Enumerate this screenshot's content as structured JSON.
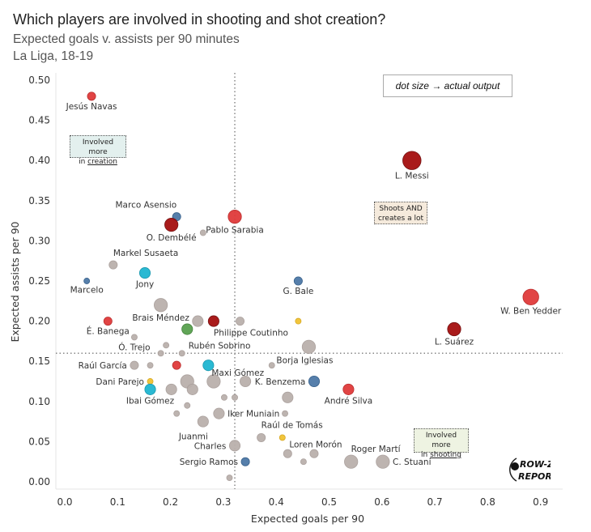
{
  "header": {
    "title": "Which players are involved in shooting and shot creation?",
    "subtitle": "Expected goals v. assists per 90 minutes",
    "league": "La Liga, 18-19"
  },
  "annotations": {
    "size_legend": "dot size → actual output",
    "creation_note": {
      "line1": "Involved more",
      "line2_prefix": "in ",
      "line2_emph": "creation"
    },
    "both_note": {
      "line1": "Shoots AND",
      "line2": "creates a lot"
    },
    "shooting_note": {
      "line1": "Involved more",
      "line2_prefix": "in ",
      "line2_emph": "shooting"
    },
    "logo": {
      "line1": "ROW-Z",
      "line2": "REPORT"
    }
  },
  "colors": {
    "red": "#e03a3a",
    "darkred": "#a50f0f",
    "blue": "#4e79a7",
    "cyan": "#1fb6d1",
    "green": "#59a14f",
    "yellow": "#f1c232",
    "gray": "#bab0ac"
  },
  "chart_data": {
    "type": "scatter",
    "title": "Which players are involved in shooting and shot creation?",
    "xlabel": "Expected goals per 90",
    "ylabel": "Expected assists per 90",
    "xlim": [
      -0.02,
      0.95
    ],
    "ylim": [
      0.0,
      0.5
    ],
    "xticks": [
      "0.0",
      "0.1",
      "0.2",
      "0.3",
      "0.4",
      "0.5",
      "0.6",
      "0.7",
      "0.8",
      "0.9"
    ],
    "xtick_values": [
      0.0,
      0.1,
      0.2,
      0.3,
      0.4,
      0.5,
      0.6,
      0.7,
      0.8,
      0.9
    ],
    "yticks": [
      "0.00",
      "0.05",
      "0.10",
      "0.15",
      "0.20",
      "0.25",
      "0.30",
      "0.35",
      "0.40",
      "0.45",
      "0.50"
    ],
    "ytick_values": [
      0.0,
      0.05,
      0.1,
      0.15,
      0.2,
      0.25,
      0.3,
      0.35,
      0.4,
      0.45,
      0.5
    ],
    "reference_lines": {
      "x": 0.34,
      "y": 0.16
    },
    "grid": false,
    "size_encoding": "actual output",
    "points": [
      {
        "name": "Jesús Navas",
        "x": 0.069,
        "y": 0.48,
        "size": 2,
        "color": "red",
        "label_pos": "below"
      },
      {
        "name": "Marco Asensio",
        "x": 0.23,
        "y": 0.33,
        "size": 2,
        "color": "blue",
        "label_pos": "above-left"
      },
      {
        "name": "O. Dembélé",
        "x": 0.22,
        "y": 0.32,
        "size": 4,
        "color": "darkred",
        "label_pos": "below"
      },
      {
        "name": "Pablo Sarabia",
        "x": 0.34,
        "y": 0.33,
        "size": 4,
        "color": "red",
        "label_pos": "below"
      },
      {
        "name": "",
        "x": 0.28,
        "y": 0.31,
        "size": 1,
        "color": "gray"
      },
      {
        "name": "Markel Susaeta",
        "x": 0.11,
        "y": 0.27,
        "size": 2,
        "color": "gray",
        "label_pos": "above-right"
      },
      {
        "name": "Jony",
        "x": 0.17,
        "y": 0.26,
        "size": 3,
        "color": "cyan",
        "label_pos": "below"
      },
      {
        "name": "Marcelo",
        "x": 0.06,
        "y": 0.25,
        "size": 1,
        "color": "blue",
        "label_pos": "below"
      },
      {
        "name": "L. Messi",
        "x": 0.675,
        "y": 0.4,
        "size": 6,
        "color": "darkred",
        "label_pos": "below"
      },
      {
        "name": "G. Bale",
        "x": 0.46,
        "y": 0.25,
        "size": 2,
        "color": "blue",
        "label_pos": "below"
      },
      {
        "name": "W. Ben Yedder",
        "x": 0.9,
        "y": 0.23,
        "size": 5,
        "color": "red",
        "label_pos": "below"
      },
      {
        "name": "L. Suárez",
        "x": 0.755,
        "y": 0.19,
        "size": 4,
        "color": "darkred",
        "label_pos": "below"
      },
      {
        "name": "Brais Méndez",
        "x": 0.2,
        "y": 0.22,
        "size": 4,
        "color": "gray",
        "label_pos": "below"
      },
      {
        "name": "É. Banega",
        "x": 0.1,
        "y": 0.2,
        "size": 2,
        "color": "red",
        "label_pos": "below"
      },
      {
        "name": "",
        "x": 0.27,
        "y": 0.2,
        "size": 3,
        "color": "gray"
      },
      {
        "name": "",
        "x": 0.25,
        "y": 0.19,
        "size": 3,
        "color": "green"
      },
      {
        "name": "Philippe Coutinho",
        "x": 0.3,
        "y": 0.2,
        "size": 3,
        "color": "darkred",
        "label_pos": "below-right"
      },
      {
        "name": "",
        "x": 0.35,
        "y": 0.2,
        "size": 2,
        "color": "gray"
      },
      {
        "name": "",
        "x": 0.46,
        "y": 0.2,
        "size": 1,
        "color": "yellow"
      },
      {
        "name": "Borja Iglesias",
        "x": 0.48,
        "y": 0.168,
        "size": 4,
        "color": "gray",
        "label_pos": "below-left"
      },
      {
        "name": "Ó. Trejo",
        "x": 0.15,
        "y": 0.18,
        "size": 1,
        "color": "gray",
        "label_pos": "below"
      },
      {
        "name": "",
        "x": 0.21,
        "y": 0.17,
        "size": 1,
        "color": "gray"
      },
      {
        "name": "",
        "x": 0.2,
        "y": 0.16,
        "size": 1,
        "color": "gray"
      },
      {
        "name": "Rubén Sobrino",
        "x": 0.24,
        "y": 0.16,
        "size": 1,
        "color": "gray",
        "label_pos": "above-right"
      },
      {
        "name": "",
        "x": 0.41,
        "y": 0.145,
        "size": 1,
        "color": "gray"
      },
      {
        "name": "Raúl García",
        "x": 0.15,
        "y": 0.145,
        "size": 2,
        "color": "gray",
        "label_pos": "left"
      },
      {
        "name": "",
        "x": 0.18,
        "y": 0.145,
        "size": 1,
        "color": "gray"
      },
      {
        "name": "",
        "x": 0.23,
        "y": 0.145,
        "size": 2,
        "color": "red"
      },
      {
        "name": "Maxi Gómez",
        "x": 0.29,
        "y": 0.145,
        "size": 3,
        "color": "cyan",
        "label_pos": "below-right"
      },
      {
        "name": "Dani Parejo",
        "x": 0.18,
        "y": 0.125,
        "size": 1,
        "color": "yellow",
        "label_pos": "left"
      },
      {
        "name": "Ibai Gómez",
        "x": 0.18,
        "y": 0.115,
        "size": 3,
        "color": "cyan",
        "label_pos": "below"
      },
      {
        "name": "",
        "x": 0.25,
        "y": 0.125,
        "size": 4,
        "color": "gray"
      },
      {
        "name": "",
        "x": 0.3,
        "y": 0.125,
        "size": 4,
        "color": "gray"
      },
      {
        "name": "",
        "x": 0.36,
        "y": 0.125,
        "size": 3,
        "color": "gray"
      },
      {
        "name": "K. Benzema",
        "x": 0.49,
        "y": 0.125,
        "size": 3,
        "color": "blue",
        "label_pos": "left"
      },
      {
        "name": "",
        "x": 0.22,
        "y": 0.115,
        "size": 3,
        "color": "gray"
      },
      {
        "name": "",
        "x": 0.26,
        "y": 0.115,
        "size": 3,
        "color": "gray"
      },
      {
        "name": "",
        "x": 0.25,
        "y": 0.095,
        "size": 1,
        "color": "gray"
      },
      {
        "name": "",
        "x": 0.32,
        "y": 0.105,
        "size": 1,
        "color": "gray"
      },
      {
        "name": "",
        "x": 0.34,
        "y": 0.105,
        "size": 1,
        "color": "gray"
      },
      {
        "name": "",
        "x": 0.44,
        "y": 0.105,
        "size": 3,
        "color": "gray"
      },
      {
        "name": "André Silva",
        "x": 0.555,
        "y": 0.115,
        "size": 3,
        "color": "red",
        "label_pos": "below"
      },
      {
        "name": "",
        "x": 0.23,
        "y": 0.085,
        "size": 1,
        "color": "gray"
      },
      {
        "name": "Iker Muniain",
        "x": 0.31,
        "y": 0.085,
        "size": 3,
        "color": "gray",
        "label_pos": "right"
      },
      {
        "name": "",
        "x": 0.435,
        "y": 0.085,
        "size": 1,
        "color": "gray"
      },
      {
        "name": "Juanmi",
        "x": 0.28,
        "y": 0.075,
        "size": 3,
        "color": "gray",
        "label_pos": "below-left"
      },
      {
        "name": "Raúl de Tomás",
        "x": 0.39,
        "y": 0.055,
        "size": 2,
        "color": "gray",
        "label_pos": "above-right"
      },
      {
        "name": "",
        "x": 0.43,
        "y": 0.055,
        "size": 1,
        "color": "yellow"
      },
      {
        "name": "Charles",
        "x": 0.34,
        "y": 0.045,
        "size": 3,
        "color": "gray",
        "label_pos": "left"
      },
      {
        "name": "Loren Morón",
        "x": 0.44,
        "y": 0.035,
        "size": 2,
        "color": "gray",
        "label_pos": "above-right"
      },
      {
        "name": "",
        "x": 0.47,
        "y": 0.025,
        "size": 1,
        "color": "gray"
      },
      {
        "name": "",
        "x": 0.49,
        "y": 0.035,
        "size": 2,
        "color": "gray"
      },
      {
        "name": "Roger Martí",
        "x": 0.56,
        "y": 0.025,
        "size": 4,
        "color": "gray",
        "label_pos": "above-right"
      },
      {
        "name": "C. Stuani",
        "x": 0.62,
        "y": 0.025,
        "size": 4,
        "color": "gray",
        "label_pos": "right"
      },
      {
        "name": "Sergio Ramos",
        "x": 0.36,
        "y": 0.025,
        "size": 2,
        "color": "blue",
        "label_pos": "left"
      },
      {
        "name": "",
        "x": 0.33,
        "y": 0.005,
        "size": 1,
        "color": "gray"
      }
    ]
  }
}
